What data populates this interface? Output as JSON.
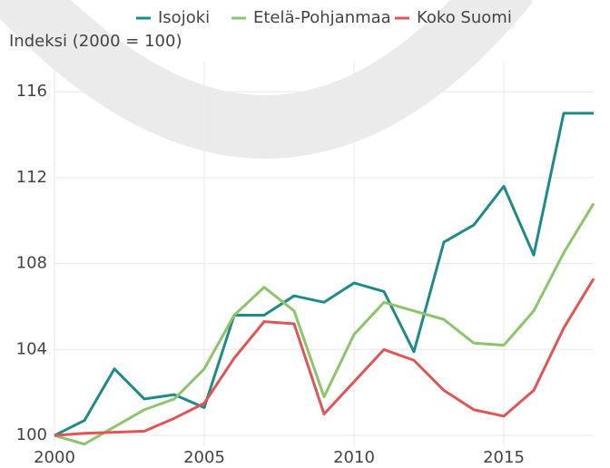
{
  "chart_data": {
    "type": "line",
    "y_label": "Indeksi (2000 = 100)",
    "x": [
      2000,
      2001,
      2002,
      2003,
      2004,
      2005,
      2006,
      2007,
      2008,
      2009,
      2010,
      2011,
      2012,
      2013,
      2014,
      2015,
      2016,
      2017,
      2018
    ],
    "series": [
      {
        "name": "Isojoki",
        "color": "#1f8a8a",
        "values": [
          100,
          100.7,
          103.1,
          101.7,
          101.9,
          101.3,
          105.6,
          105.6,
          106.5,
          106.2,
          107.1,
          106.7,
          103.9,
          109.0,
          109.8,
          111.6,
          108.4,
          115.0,
          115.0
        ]
      },
      {
        "name": "Etelä-Pohjanmaa",
        "color": "#8cc56c",
        "values": [
          100,
          99.6,
          100.4,
          101.2,
          101.7,
          103.1,
          105.6,
          106.9,
          105.8,
          101.8,
          104.7,
          106.2,
          105.8,
          105.4,
          104.3,
          104.2,
          105.8,
          108.5,
          110.8
        ]
      },
      {
        "name": "Koko Suomi",
        "color": "#e05555",
        "values": [
          100,
          100.1,
          100.15,
          100.2,
          100.8,
          101.5,
          103.6,
          105.3,
          105.2,
          101.0,
          102.5,
          104.0,
          103.5,
          102.1,
          101.2,
          100.9,
          102.1,
          105.0,
          107.3
        ]
      }
    ],
    "xlim": [
      2000,
      2018
    ],
    "xticks": [
      2000,
      2005,
      2010,
      2015
    ],
    "ylim": [
      99.5,
      117.4
    ],
    "yticks": [
      100,
      104,
      108,
      112,
      116
    ],
    "grid": true
  }
}
